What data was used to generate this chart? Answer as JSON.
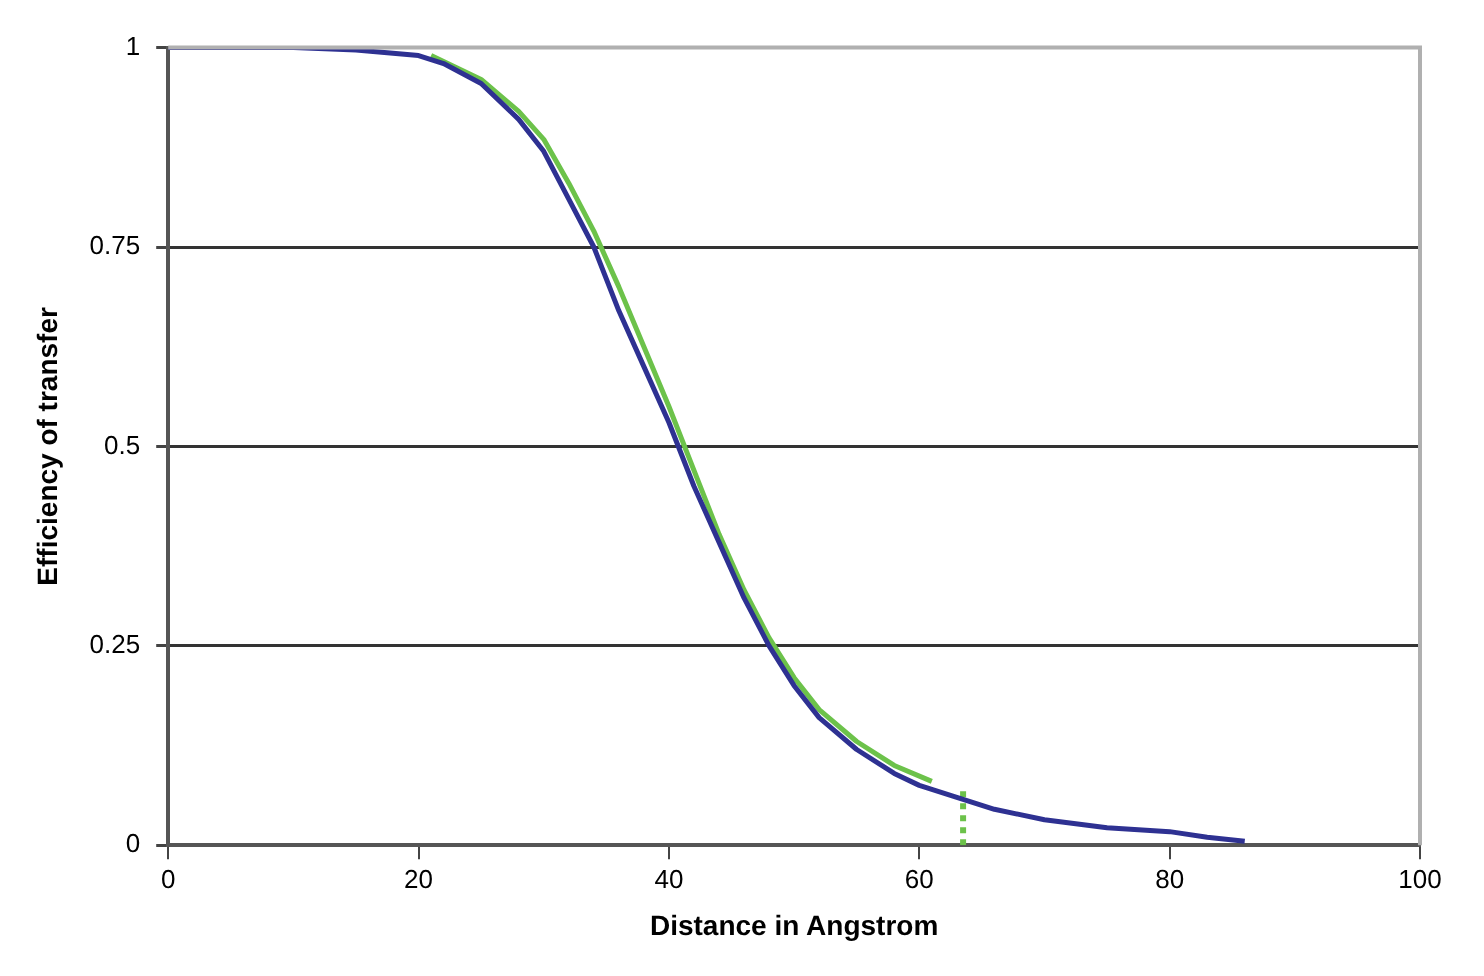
{
  "chart_data": {
    "type": "line",
    "xlabel": "Distance in Angstrom",
    "ylabel": "Efficiency of transfer",
    "xlim": [
      0,
      100
    ],
    "xticks": [
      0,
      20,
      40,
      60,
      80,
      100
    ],
    "ylim": [
      0,
      1
    ],
    "yticks": [
      0,
      0.25,
      0.5,
      0.75,
      1
    ],
    "grid": "y",
    "legend": false,
    "marker": "none",
    "series": [
      {
        "color": "#2e3192",
        "x": [
          0,
          10,
          15,
          20,
          22,
          25,
          28,
          30,
          32,
          34,
          36,
          38,
          40,
          42,
          44,
          46,
          48,
          50,
          52,
          55,
          58,
          60,
          63,
          66,
          70,
          75,
          80,
          83,
          86
        ],
        "values": [
          1,
          1,
          0.997,
          0.99,
          0.98,
          0.955,
          0.91,
          0.87,
          0.81,
          0.75,
          0.67,
          0.6,
          0.53,
          0.45,
          0.38,
          0.31,
          0.25,
          0.2,
          0.16,
          0.12,
          0.09,
          0.075,
          0.06,
          0.045,
          0.032,
          0.022,
          0.017,
          0.01,
          0.005
        ]
      },
      {
        "color": "#6cc24a",
        "x": [
          21,
          25,
          28,
          30,
          32,
          34,
          36,
          38,
          40,
          42,
          44,
          46,
          48,
          50,
          52,
          55,
          58,
          61
        ],
        "values": [
          0.99,
          0.96,
          0.92,
          0.885,
          0.83,
          0.77,
          0.7,
          0.625,
          0.55,
          0.47,
          0.39,
          0.32,
          0.26,
          0.21,
          0.17,
          0.13,
          0.1,
          0.08
        ]
      },
      {
        "color": "#6cc24a",
        "line_style": "dotted",
        "x": [
          63.5,
          63.5
        ],
        "values": [
          0,
          0.075
        ]
      }
    ]
  }
}
